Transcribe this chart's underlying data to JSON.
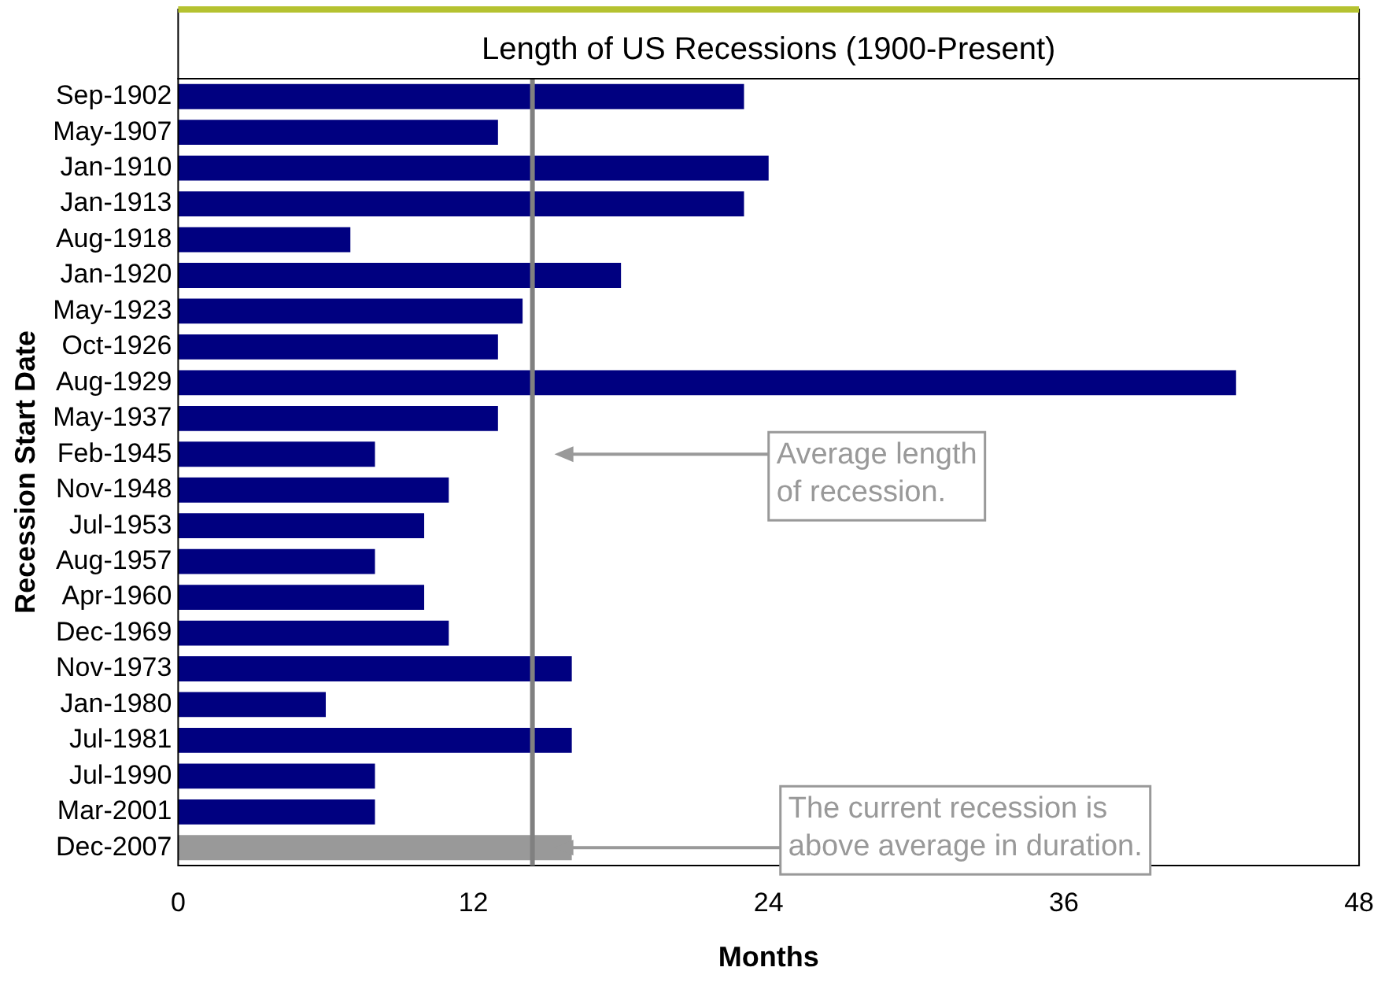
{
  "chart_data": {
    "type": "bar",
    "orientation": "horizontal",
    "title": "Length of US Recessions (1900-Present)",
    "xlabel": "Months",
    "ylabel": "Recession Start Date",
    "categories": [
      "Sep-1902",
      "May-1907",
      "Jan-1910",
      "Jan-1913",
      "Aug-1918",
      "Jan-1920",
      "May-1923",
      "Oct-1926",
      "Aug-1929",
      "May-1937",
      "Feb-1945",
      "Nov-1948",
      "Jul-1953",
      "Aug-1957",
      "Apr-1960",
      "Dec-1969",
      "Nov-1973",
      "Jan-1980",
      "Jul-1981",
      "Jul-1990",
      "Mar-2001",
      "Dec-2007"
    ],
    "values": [
      23,
      13,
      24,
      23,
      7,
      18,
      14,
      13,
      43,
      13,
      8,
      11,
      10,
      8,
      10,
      11,
      16,
      6,
      16,
      8,
      8,
      16
    ],
    "colors": [
      "#000080",
      "#000080",
      "#000080",
      "#000080",
      "#000080",
      "#000080",
      "#000080",
      "#000080",
      "#000080",
      "#000080",
      "#000080",
      "#000080",
      "#000080",
      "#000080",
      "#000080",
      "#000080",
      "#000080",
      "#000080",
      "#000080",
      "#000080",
      "#000080",
      "#999999"
    ],
    "xlim": [
      0,
      48
    ],
    "xticks": [
      0,
      12,
      24,
      36,
      48
    ],
    "grid": false,
    "legend": false,
    "ref_lines": [
      {
        "axis": "x",
        "value": 14.4,
        "color": "#808080"
      }
    ],
    "annotations": [
      "Average length\nof recession.",
      "The current recession is\nabove average in duration."
    ]
  }
}
